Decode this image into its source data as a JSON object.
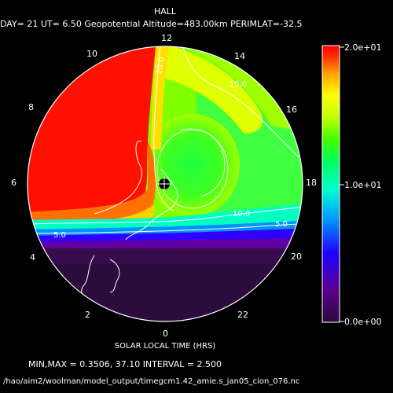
{
  "header": {
    "title": "HALL",
    "subtitle": "DAY= 21 UT= 6.50 Geopotential Altitude=483.00km PERIMLAT=-32.5"
  },
  "footer": {
    "xlabel": "SOLAR LOCAL TIME (HRS)",
    "minmax": "MIN,MAX =      0.3506,      37.10 INTERVAL =        2.500",
    "path": "/hao/aim2/woolman/model_output/timegcm1.42_amie.s_jan05_cion_076.nc"
  },
  "polar_plot": {
    "hour_labels": [
      "12",
      "14",
      "16",
      "18",
      "20",
      "22",
      "0",
      "2",
      "4",
      "6",
      "8",
      "10"
    ],
    "contour_labels": [
      "20.0",
      "15.0",
      "10.0",
      "5.0",
      "5.0"
    ],
    "center_marker": "pole"
  },
  "colorbar": {
    "max_label": "2.0e+01",
    "mid_label": "1.0e+01",
    "min_label": "0.0e+00",
    "colors": [
      "#2a0a3a",
      "#5a0090",
      "#2000ff",
      "#00a0ff",
      "#00ffd0",
      "#00ff60",
      "#40ff00",
      "#c0ff00",
      "#ffff00",
      "#ffa000",
      "#ff3000",
      "#ff0000"
    ]
  }
}
